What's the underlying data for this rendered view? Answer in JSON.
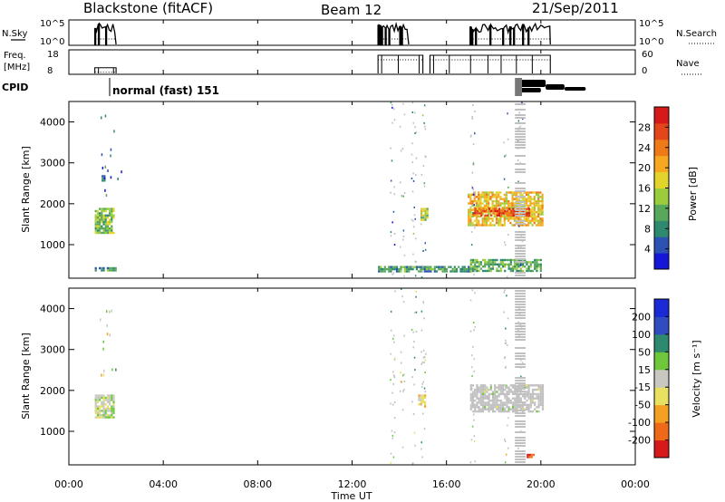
{
  "header": {
    "station": "Blackstone (fitACF)",
    "beam": "Beam 12",
    "date": "21/Sep/2011"
  },
  "nsky_panel": {
    "left_label": "N.Sky",
    "right_label": "N.Search",
    "left_ticks": [
      "10^5",
      "10^0"
    ],
    "right_ticks": [
      "10^5",
      "10^0"
    ]
  },
  "freq_panel": {
    "left_label_line1": "Freq.",
    "left_label_line2": "[MHz]",
    "right_label": "Nave",
    "left_ticks": [
      "18",
      "8"
    ],
    "right_ticks": [
      "60",
      "0"
    ]
  },
  "cpid_panel": {
    "label": "CPID",
    "program": "normal (fast) 151"
  },
  "x_axis": {
    "label": "Time UT",
    "ticks": [
      "00:00",
      "04:00",
      "08:00",
      "12:00",
      "16:00",
      "20:00",
      "00:00"
    ]
  },
  "power_panel": {
    "ylabel": "Slant Range [km]",
    "yticks": [
      "1000",
      "2000",
      "3000",
      "4000"
    ],
    "colorbar_label": "Power [dB]",
    "colorbar_ticks": [
      "4",
      "8",
      "12",
      "16",
      "20",
      "24",
      "28"
    ]
  },
  "velocity_panel": {
    "ylabel": "Slant Range [km]",
    "yticks": [
      "1000",
      "2000",
      "3000",
      "4000"
    ],
    "colorbar_label": "Velocity [m s⁻¹]",
    "colorbar_ticks": [
      "200",
      "100",
      "50",
      "15",
      "-15",
      "-50",
      "-100",
      "-200"
    ]
  },
  "colors": {
    "power_scale": [
      "#1616d8",
      "#2c52b4",
      "#2e8a6e",
      "#57a85a",
      "#9acc3c",
      "#e2d42a",
      "#f6a820",
      "#ef7a18",
      "#e3461a",
      "#d61a1a"
    ],
    "velocity_scale": [
      "#1a2ad6",
      "#2f4cc0",
      "#2e8a6e",
      "#6fc83c",
      "#c8c8c0",
      "#e8e060",
      "#f4a020",
      "#ef6a18",
      "#d61a1a"
    ],
    "ground_scatter": "#c0c0c0"
  },
  "chart_data": [
    {
      "type": "heatmap",
      "title": "Blackstone (fitACF)  Beam 12  21/Sep/2011",
      "quantity": "Power",
      "xlabel": "Time UT",
      "ylabel": "Slant Range [km]",
      "xlim": [
        0,
        24
      ],
      "ylim": [
        180,
        4500
      ],
      "colorbar_label": "Power [dB]",
      "colorbar_range": [
        0,
        30
      ],
      "features": [
        {
          "t": [
            1.1,
            1.9
          ],
          "range": [
            1300,
            1900
          ],
          "value_db": 12
        },
        {
          "t": [
            1.3,
            1.5
          ],
          "range": [
            2550,
            2700
          ],
          "value_db": 5
        },
        {
          "t": [
            1.1,
            2.0
          ],
          "range": [
            350,
            450
          ],
          "value_db": 8
        },
        {
          "t": [
            14.9,
            15.2
          ],
          "range": [
            1600,
            1900
          ],
          "value_db": 14
        },
        {
          "t": [
            16.9,
            20.1
          ],
          "range": [
            1500,
            2300
          ],
          "value_db": 18
        },
        {
          "t": [
            17.1,
            19.5
          ],
          "range": [
            1700,
            1900
          ],
          "value_db": 26
        },
        {
          "t": [
            13.1,
            17.0
          ],
          "range": [
            350,
            480
          ],
          "value_db": 8
        },
        {
          "t": [
            17.0,
            20.0
          ],
          "range": [
            350,
            650
          ],
          "value_db": 10
        }
      ]
    },
    {
      "type": "heatmap",
      "title": "Blackstone (fitACF)  Beam 12  21/Sep/2011",
      "quantity": "Velocity",
      "xlabel": "Time UT",
      "ylabel": "Slant Range [km]",
      "xlim": [
        0,
        24
      ],
      "ylim": [
        180,
        4500
      ],
      "colorbar_label": "Velocity [m s⁻¹]",
      "colorbar_range": [
        -250,
        250
      ],
      "features": [
        {
          "t": [
            1.1,
            1.9
          ],
          "range": [
            1350,
            1900
          ],
          "value_ms": 0
        },
        {
          "t": [
            14.8,
            15.1
          ],
          "range": [
            1600,
            1900
          ],
          "value_ms": -60
        },
        {
          "t": [
            17.0,
            20.1
          ],
          "range": [
            1500,
            2150
          ],
          "value_ms": 0,
          "ground_scatter": true
        },
        {
          "t": [
            19.4,
            19.7
          ],
          "range": [
            350,
            450
          ],
          "value_ms": -220
        }
      ]
    },
    {
      "type": "line",
      "quantity": "N.Sky / N.Search",
      "x_ticks_hours": [
        0,
        4,
        8,
        12,
        16,
        20,
        24
      ],
      "active_intervals_hours": [
        [
          1.1,
          2.0
        ],
        [
          13.1,
          14.4
        ],
        [
          17.0,
          20.4
        ]
      ]
    },
    {
      "type": "line",
      "quantity": "Freq. [MHz] / Nave",
      "ylim_freq": [
        8,
        18
      ],
      "ylim_nave": [
        0,
        60
      ],
      "segments": [
        {
          "t": [
            1.1,
            2.0
          ],
          "freq": 10.5
        },
        {
          "t": [
            13.1,
            15.0
          ],
          "freq": 16
        },
        {
          "t": [
            15.3,
            20.4
          ],
          "freq": 16
        }
      ]
    }
  ]
}
